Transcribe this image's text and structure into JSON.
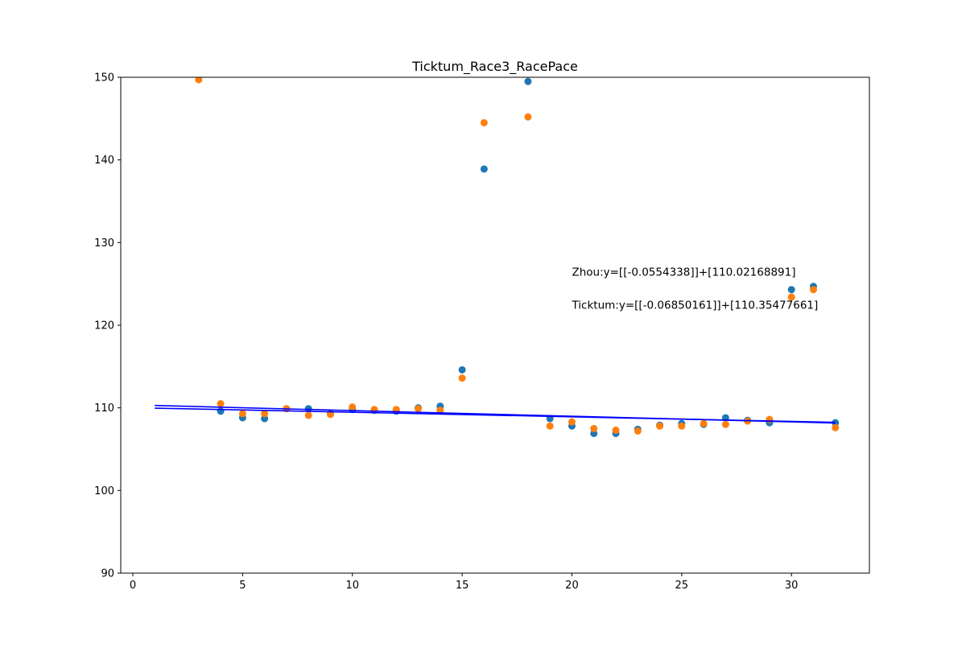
{
  "chart_data": {
    "type": "scatter",
    "title": "Ticktum_Race3_RacePace",
    "xlabel": "",
    "ylabel": "",
    "xlim": [
      -0.55,
      33.55
    ],
    "ylim": [
      90,
      150
    ],
    "xticks": [
      0,
      5,
      10,
      15,
      20,
      25,
      30
    ],
    "yticks": [
      90,
      100,
      110,
      120,
      130,
      140,
      150
    ],
    "grid": false,
    "legend": "none",
    "series": [
      {
        "color": "#1f77b4",
        "points": [
          [
            4,
            109.6
          ],
          [
            5,
            108.8
          ],
          [
            6,
            108.7
          ],
          [
            7,
            109.9
          ],
          [
            8,
            109.9
          ],
          [
            9,
            109.3
          ],
          [
            10,
            109.8
          ],
          [
            11,
            109.7
          ],
          [
            12,
            109.6
          ],
          [
            13,
            110.0
          ],
          [
            14,
            110.2
          ],
          [
            15,
            114.6
          ],
          [
            16,
            138.9
          ],
          [
            18,
            149.5
          ],
          [
            19,
            108.7
          ],
          [
            20,
            107.8
          ],
          [
            21,
            106.9
          ],
          [
            22,
            106.9
          ],
          [
            23,
            107.4
          ],
          [
            24,
            107.9
          ],
          [
            25,
            108.1
          ],
          [
            26,
            108.0
          ],
          [
            27,
            108.8
          ],
          [
            28,
            108.5
          ],
          [
            29,
            108.2
          ],
          [
            30,
            124.3
          ],
          [
            31,
            124.7
          ],
          [
            32,
            108.2
          ]
        ]
      },
      {
        "color": "#ff7f0e",
        "points": [
          [
            3,
            149.7
          ],
          [
            4,
            110.5
          ],
          [
            5,
            109.3
          ],
          [
            6,
            109.3
          ],
          [
            7,
            109.9
          ],
          [
            8,
            109.1
          ],
          [
            9,
            109.2
          ],
          [
            10,
            110.1
          ],
          [
            11,
            109.8
          ],
          [
            12,
            109.8
          ],
          [
            13,
            109.9
          ],
          [
            14,
            109.7
          ],
          [
            15,
            113.6
          ],
          [
            16,
            144.5
          ],
          [
            18,
            145.2
          ],
          [
            19,
            107.8
          ],
          [
            20,
            108.3
          ],
          [
            21,
            107.5
          ],
          [
            22,
            107.3
          ],
          [
            23,
            107.2
          ],
          [
            24,
            107.8
          ],
          [
            25,
            107.8
          ],
          [
            26,
            108.1
          ],
          [
            27,
            108.0
          ],
          [
            28,
            108.4
          ],
          [
            29,
            108.6
          ],
          [
            30,
            123.4
          ],
          [
            31,
            124.3
          ],
          [
            32,
            107.6
          ]
        ]
      }
    ],
    "fit_lines": [
      {
        "color": "#0000ff",
        "slope": -0.0554338,
        "intercept": 110.02168891,
        "x_range": [
          1,
          32
        ]
      },
      {
        "color": "#0000ff",
        "slope": -0.06850161,
        "intercept": 110.35477661,
        "x_range": [
          1,
          32
        ]
      }
    ],
    "annotations": [
      {
        "text": "Zhou:y=[[-0.0554338]]+[110.02168891]",
        "x": 20,
        "y": 126
      },
      {
        "text": "Ticktum:y=[[-0.06850161]]+[110.35477661]",
        "x": 20,
        "y": 122
      }
    ]
  }
}
